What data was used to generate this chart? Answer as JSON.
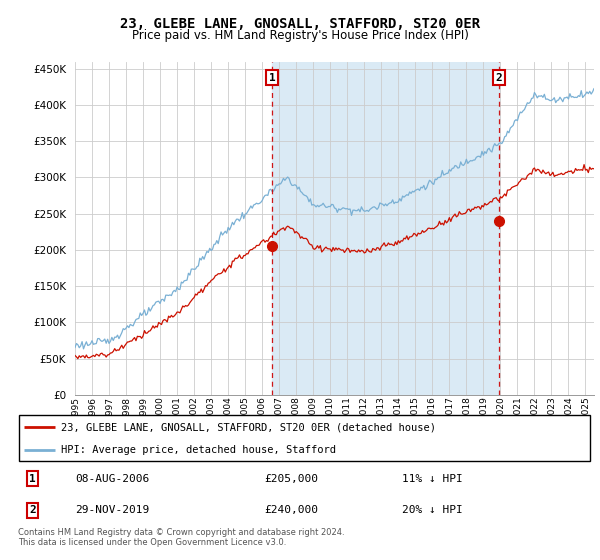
{
  "title": "23, GLEBE LANE, GNOSALL, STAFFORD, ST20 0ER",
  "subtitle": "Price paid vs. HM Land Registry's House Price Index (HPI)",
  "ytick_values": [
    0,
    50000,
    100000,
    150000,
    200000,
    250000,
    300000,
    350000,
    400000,
    450000
  ],
  "ylim": [
    0,
    460000
  ],
  "xlim_start": 1995.0,
  "xlim_end": 2025.5,
  "hpi_color": "#7ab0d4",
  "hpi_fill_color": "#daeaf5",
  "price_color": "#cc1100",
  "marker1_x": 2006.58,
  "marker1_y": 205000,
  "marker2_x": 2019.92,
  "marker2_y": 240000,
  "marker1_label": "1",
  "marker2_label": "2",
  "legend_line1": "23, GLEBE LANE, GNOSALL, STAFFORD, ST20 0ER (detached house)",
  "legend_line2": "HPI: Average price, detached house, Stafford",
  "table_row1_num": "1",
  "table_row1_date": "08-AUG-2006",
  "table_row1_price": "£205,000",
  "table_row1_hpi": "11% ↓ HPI",
  "table_row2_num": "2",
  "table_row2_date": "29-NOV-2019",
  "table_row2_price": "£240,000",
  "table_row2_hpi": "20% ↓ HPI",
  "footnote": "Contains HM Land Registry data © Crown copyright and database right 2024.\nThis data is licensed under the Open Government Licence v3.0.",
  "dashed_line1_x": 2006.58,
  "dashed_line2_x": 2019.92,
  "background_color": "#ffffff",
  "grid_color": "#cccccc"
}
